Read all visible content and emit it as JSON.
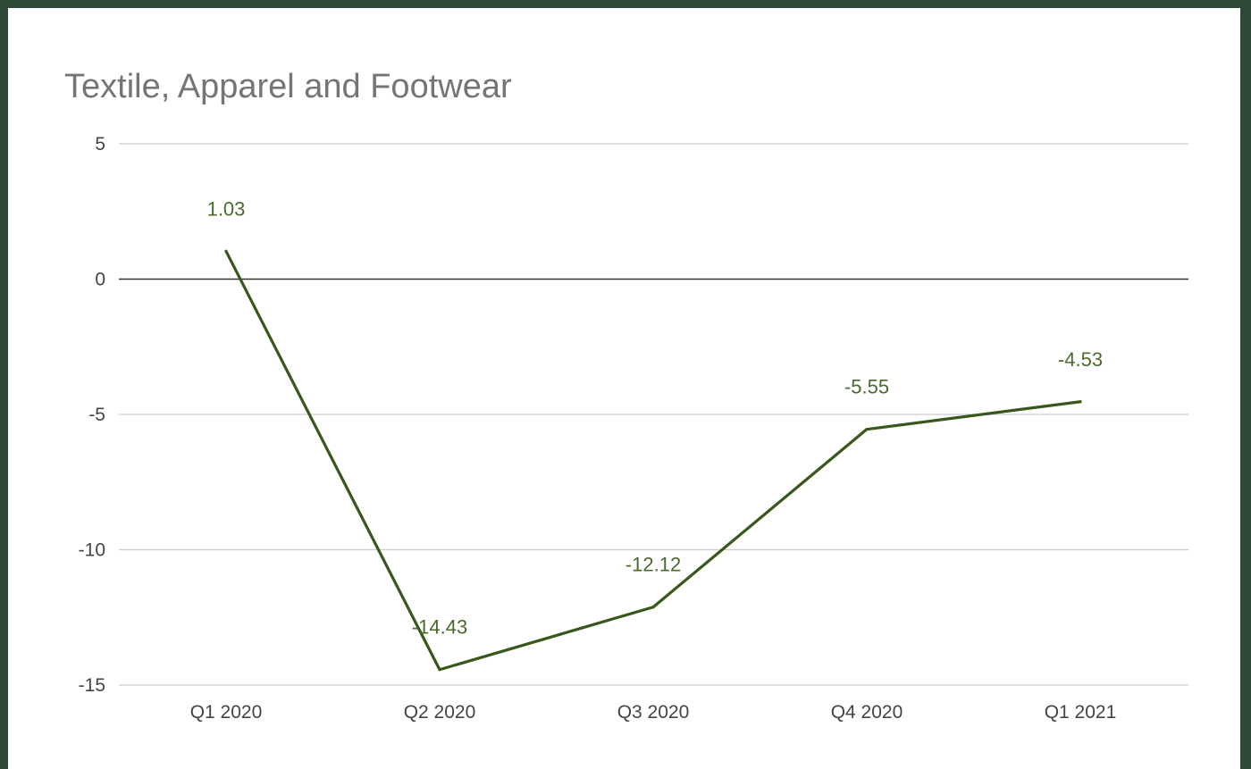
{
  "chart_data": {
    "type": "line",
    "title": "Textile, Apparel and Footwear",
    "categories": [
      "Q1 2020",
      "Q2 2020",
      "Q3 2020",
      "Q4 2020",
      "Q1 2021"
    ],
    "series": [
      {
        "values": [
          1.03,
          -14.43,
          -12.12,
          -5.55,
          -4.53
        ],
        "data_labels": [
          "1.03",
          "-14.43",
          "-12.12",
          "-5.55",
          "-4.53"
        ]
      }
    ],
    "y_ticks": [
      5,
      0,
      -5,
      -10,
      -15
    ],
    "y_tick_labels": [
      "5",
      "0",
      "-5",
      "-10",
      "-15"
    ],
    "ylim": [
      -15,
      5
    ],
    "xlabel": "",
    "ylabel": "",
    "grid": true,
    "legend": "none",
    "colors": {
      "line": "#38571a",
      "data_label": "#4a6a2c",
      "gridline": "#cccccc",
      "zero_line": "#333333",
      "title": "#757575",
      "frame": "#2c4a37"
    }
  }
}
